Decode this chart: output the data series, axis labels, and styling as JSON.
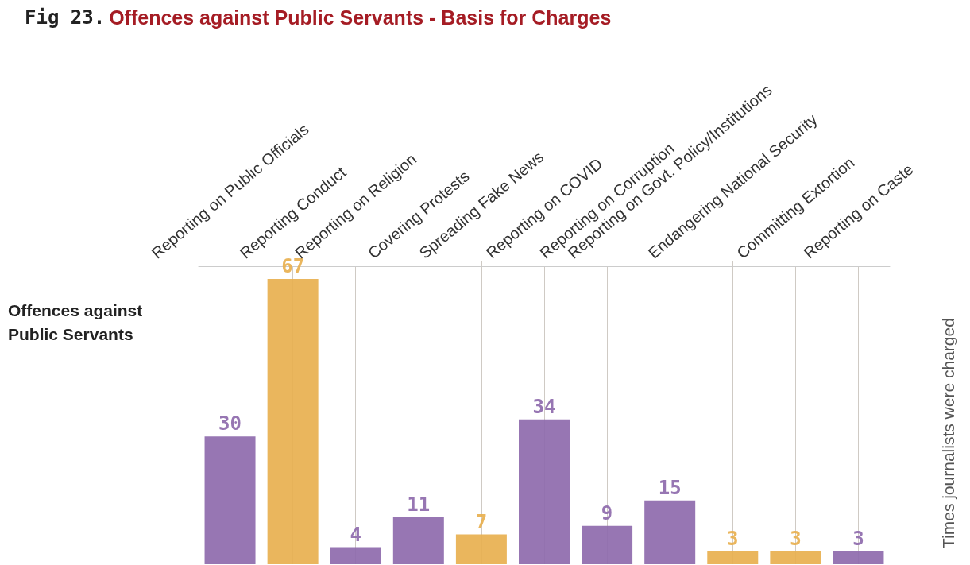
{
  "chart_data": {
    "type": "bar",
    "title": "Fig 23. Offences against Public Servants - Basis for Charges",
    "ylabel": "Times journalists were charged",
    "annotations": [
      "Offences against Public Servants"
    ],
    "categories": [
      "Reporting on Public Officials",
      "Reporting Conduct",
      "Reporting on Religion",
      "Covering Protests",
      "Spreading Fake News",
      "Reporting on COVID",
      "Reporting on Corruption",
      "Reporting on Govt. Policy/Institutions",
      "Endangering National Security",
      "Committing Extortion",
      "Reporting on Caste"
    ],
    "values": [
      30,
      67,
      4,
      11,
      7,
      34,
      9,
      15,
      3,
      3,
      3
    ],
    "colors": [
      "#8e6aad",
      "#e8b04f",
      "#8e6aad",
      "#8e6aad",
      "#e8b04f",
      "#8e6aad",
      "#8e6aad",
      "#8e6aad",
      "#e8b04f",
      "#e8b04f",
      "#8e6aad"
    ],
    "data_labels": true,
    "grid": "x"
  }
}
